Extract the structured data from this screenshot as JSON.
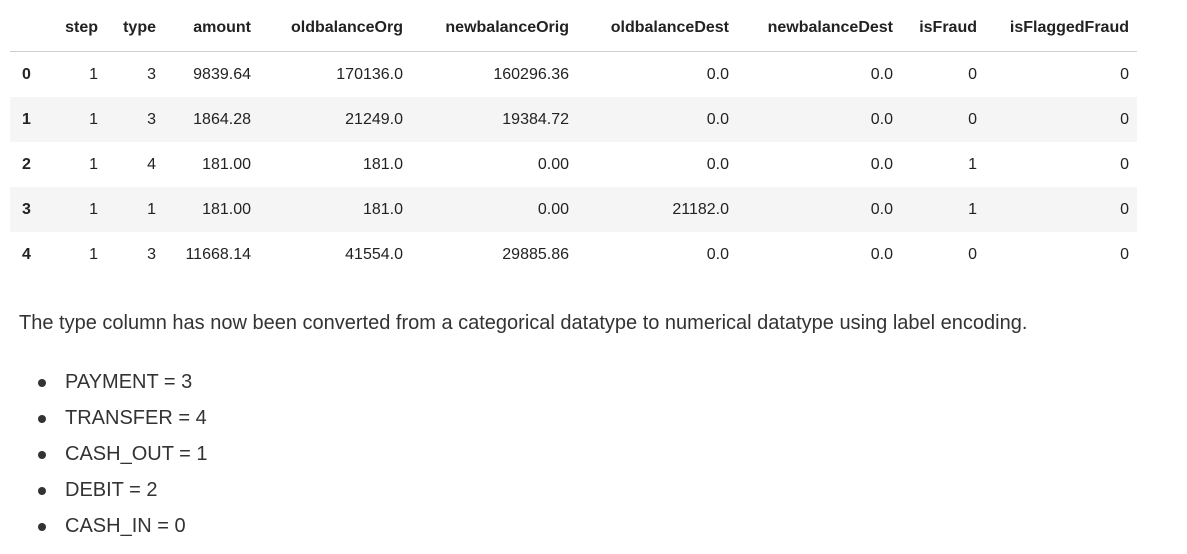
{
  "table": {
    "columns": [
      "step",
      "type",
      "amount",
      "oldbalanceOrg",
      "newbalanceOrig",
      "oldbalanceDest",
      "newbalanceDest",
      "isFraud",
      "isFlaggedFraud"
    ],
    "rows": [
      {
        "index": "0",
        "cells": [
          "1",
          "3",
          "9839.64",
          "170136.0",
          "160296.36",
          "0.0",
          "0.0",
          "0",
          "0"
        ]
      },
      {
        "index": "1",
        "cells": [
          "1",
          "3",
          "1864.28",
          "21249.0",
          "19384.72",
          "0.0",
          "0.0",
          "0",
          "0"
        ]
      },
      {
        "index": "2",
        "cells": [
          "1",
          "4",
          "181.00",
          "181.0",
          "0.00",
          "0.0",
          "0.0",
          "1",
          "0"
        ]
      },
      {
        "index": "3",
        "cells": [
          "1",
          "1",
          "181.00",
          "181.0",
          "0.00",
          "21182.0",
          "0.0",
          "1",
          "0"
        ]
      },
      {
        "index": "4",
        "cells": [
          "1",
          "3",
          "11668.14",
          "41554.0",
          "29885.86",
          "0.0",
          "0.0",
          "0",
          "0"
        ]
      }
    ]
  },
  "markdown": {
    "paragraph": "The type column has now been converted from a categorical datatype to numerical datatype using label encoding.",
    "list": [
      "PAYMENT = 3",
      "TRANSFER = 4",
      "CASH_OUT = 1",
      "DEBIT = 2",
      "CASH_IN = 0"
    ]
  }
}
